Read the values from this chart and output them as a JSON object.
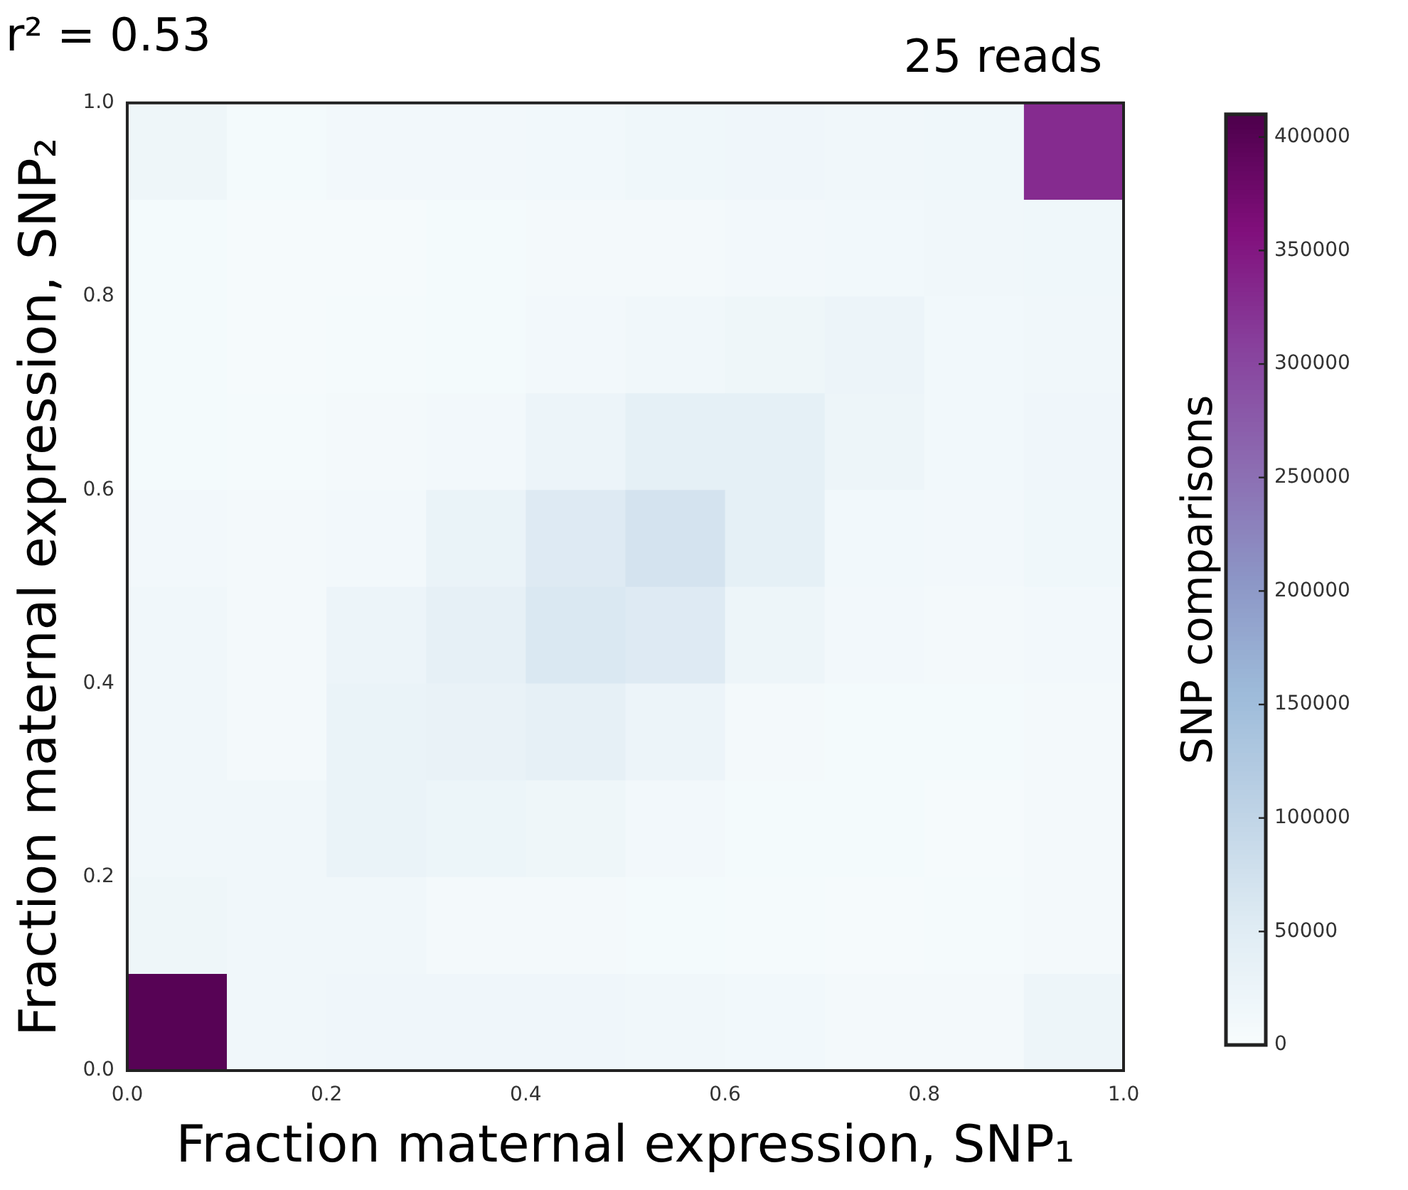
{
  "chart_data": {
    "type": "heatmap",
    "title": "r² = 0.53",
    "annotations": [
      "25 reads"
    ],
    "xlabel": "Fraction maternal expression, SNP₁",
    "ylabel": "Fraction maternal expression, SNP₂",
    "clabel": "SNP comparisons",
    "xlim": [
      0,
      1
    ],
    "ylim": [
      0,
      1
    ],
    "xticks": [
      {
        "value": 0,
        "label": "0.0"
      },
      {
        "value": 0.2,
        "label": "0.2"
      },
      {
        "value": 0.4,
        "label": "0.4"
      },
      {
        "value": 0.6,
        "label": "0.6"
      },
      {
        "value": 0.8,
        "label": "0.8"
      },
      {
        "value": 1,
        "label": "1.0"
      }
    ],
    "yticks": [
      {
        "value": 0,
        "label": "0.0"
      },
      {
        "value": 0.2,
        "label": "0.2"
      },
      {
        "value": 0.4,
        "label": "0.4"
      },
      {
        "value": 0.6,
        "label": "0.6"
      },
      {
        "value": 0.8,
        "label": "0.8"
      },
      {
        "value": 1,
        "label": "1.0"
      }
    ],
    "cells": [
      [
        20000,
        8000,
        12000,
        12000,
        14000,
        17000,
        18000,
        16000,
        17000,
        330000
      ],
      [
        8000,
        5000,
        5000,
        8000,
        10000,
        10000,
        12000,
        14000,
        15000,
        17000
      ],
      [
        8000,
        5000,
        7000,
        8000,
        12000,
        15000,
        20000,
        25000,
        14000,
        16000
      ],
      [
        8000,
        7000,
        10000,
        12000,
        25000,
        40000,
        40000,
        22000,
        14000,
        18000
      ],
      [
        12000,
        9000,
        12000,
        28000,
        55000,
        70000,
        40000,
        13000,
        12000,
        17000
      ],
      [
        15000,
        10000,
        25000,
        38000,
        60000,
        55000,
        22000,
        12000,
        10000,
        12000
      ],
      [
        15000,
        10000,
        28000,
        32000,
        38000,
        25000,
        10000,
        8000,
        8000,
        10000
      ],
      [
        16000,
        16000,
        30000,
        24000,
        20000,
        12000,
        8000,
        8000,
        5000,
        10000
      ],
      [
        20000,
        16000,
        16000,
        10000,
        10000,
        8000,
        6000,
        5000,
        7000,
        10000
      ],
      [
        400000,
        16000,
        18000,
        18000,
        18000,
        15000,
        14000,
        10000,
        10000,
        22000
      ]
    ],
    "clim": [
      0,
      410000
    ],
    "cticks": [
      0,
      50000,
      100000,
      150000,
      200000,
      250000,
      300000,
      350000,
      400000
    ],
    "grid": false,
    "legend": false
  }
}
